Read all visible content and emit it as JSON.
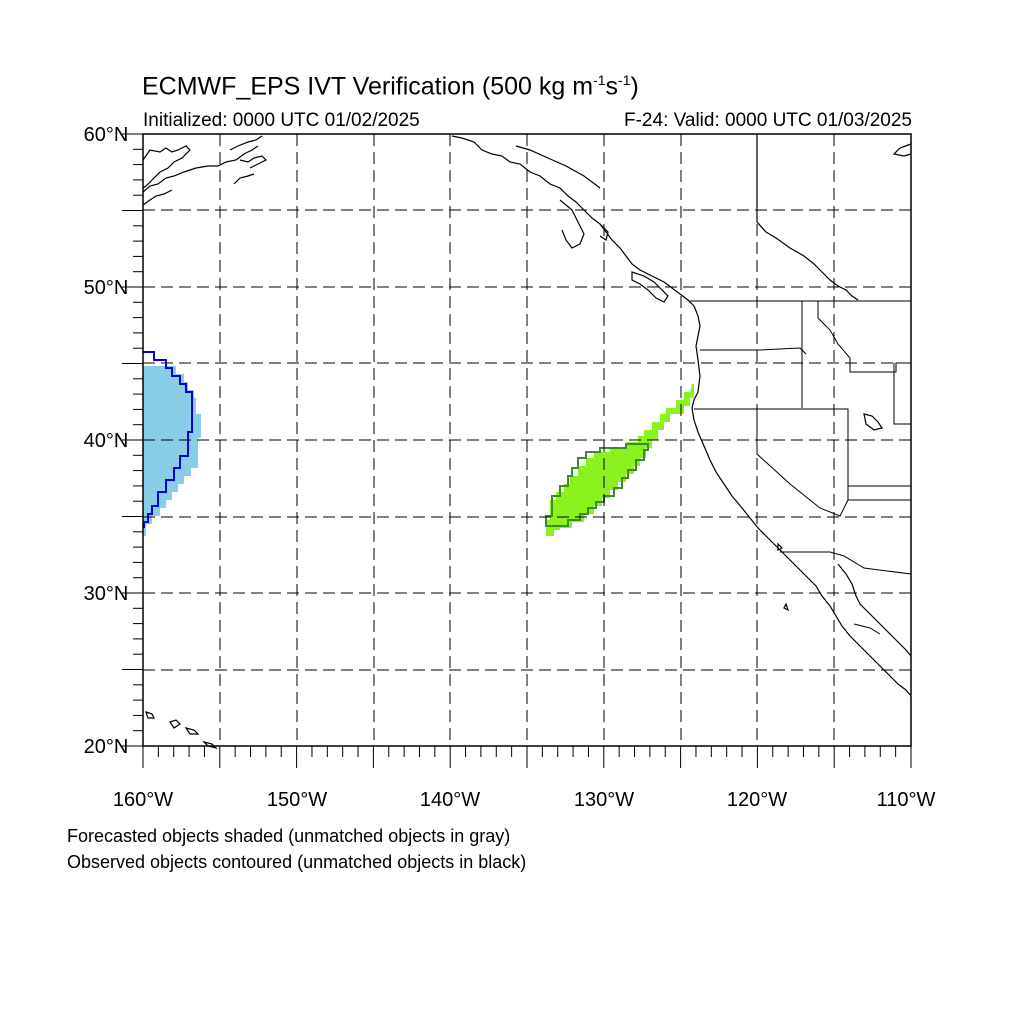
{
  "title": {
    "main": "ECMWF_EPS IVT Verification (500 kg m",
    "exp1": "-1",
    "mid": "s",
    "exp2": "-1",
    "end": ")"
  },
  "subtitle": {
    "initialized": "Initialized: 0000 UTC 01/02/2025",
    "valid": "F-24: Valid: 0000 UTC 01/03/2025"
  },
  "lat_labels": [
    "60°N",
    "50°N",
    "40°N",
    "30°N",
    "20°N"
  ],
  "lon_labels": [
    "160°W",
    "150°W",
    "140°W",
    "130°W",
    "120°W",
    "110°W"
  ],
  "notes": {
    "forecast": "Forecasted objects shaded (unmatched objects in gray)",
    "observed": "Observed objects contoured (unmatched objects in black)"
  },
  "colors": {
    "object1_fill": "#87CEE6",
    "object1_contour": "#0000E0",
    "object2_fill": "#8CF21E",
    "object2_contour": "#3C8C28",
    "grid": "#000000"
  }
}
